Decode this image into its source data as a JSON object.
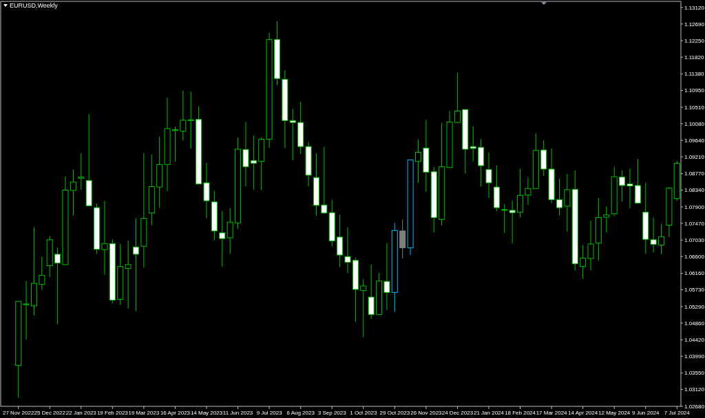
{
  "chart_data": {
    "type": "candlestick",
    "title": "EURUSD,Weekly",
    "categories": [
      "27 Nov 2022",
      null,
      null,
      null,
      "25 Dec 2022",
      null,
      null,
      null,
      "22 Jan 2023",
      null,
      null,
      null,
      "19 Feb 2023",
      null,
      null,
      null,
      "19 Mar 2023",
      null,
      null,
      null,
      "16 Apr 2023",
      null,
      null,
      null,
      "14 May 2023",
      null,
      null,
      null,
      "11 Jun 2023",
      null,
      null,
      null,
      "9 Jul 2023",
      null,
      null,
      null,
      "6 Aug 2023",
      null,
      null,
      null,
      "3 Sep 2023",
      null,
      null,
      null,
      "1 Oct 2023",
      null,
      null,
      null,
      "29 Oct 2023",
      null,
      null,
      null,
      "26 Nov 2023",
      null,
      null,
      null,
      "24 Dec 2023",
      null,
      null,
      null,
      "21 Jan 2024",
      null,
      null,
      null,
      "18 Feb 2024",
      null,
      null,
      null,
      "17 Mar 2024",
      null,
      null,
      null,
      "14 Apr 2024",
      null,
      null,
      null,
      "12 May 2024",
      null,
      null,
      null,
      "9 Jun 2024",
      null,
      null,
      null,
      "7 Jul 2024"
    ],
    "ohlc": [
      [
        1.0375,
        1.0543,
        1.029,
        1.0543
      ],
      [
        1.0534,
        1.0596,
        1.0443,
        1.0536
      ],
      [
        1.0531,
        1.0737,
        1.0506,
        1.059
      ],
      [
        1.0587,
        1.066,
        1.0573,
        1.0611
      ],
      [
        1.0636,
        1.0714,
        1.0606,
        1.0704
      ],
      [
        1.0666,
        1.0683,
        1.0483,
        1.0643
      ],
      [
        1.0639,
        1.087,
        1.0638,
        1.0834
      ],
      [
        1.0833,
        1.0888,
        1.0767,
        1.0855
      ],
      [
        1.0865,
        1.0931,
        1.0835,
        1.0868
      ],
      [
        1.0859,
        1.1033,
        1.0792,
        1.0793
      ],
      [
        1.0788,
        1.0799,
        1.0667,
        1.0679
      ],
      [
        1.0678,
        1.0806,
        1.0613,
        1.0694
      ],
      [
        1.0694,
        1.0706,
        1.0537,
        1.0546
      ],
      [
        1.0548,
        1.0693,
        1.0534,
        1.0634
      ],
      [
        1.0629,
        1.0702,
        1.0524,
        1.0639
      ],
      [
        1.0685,
        1.076,
        1.0517,
        1.0666
      ],
      [
        1.0687,
        1.0931,
        1.0631,
        1.076
      ],
      [
        1.0774,
        1.0927,
        1.0742,
        1.0843
      ],
      [
        1.0842,
        1.0974,
        1.0788,
        1.0901
      ],
      [
        1.0901,
        1.1076,
        1.0831,
        1.0995
      ],
      [
        1.099,
        1.1001,
        1.0909,
        1.0992
      ],
      [
        1.0988,
        1.1095,
        1.0963,
        1.1017
      ],
      [
        1.1016,
        1.1092,
        1.0942,
        1.1018
      ],
      [
        1.1019,
        1.1054,
        1.0849,
        1.085
      ],
      [
        1.0853,
        1.0906,
        1.076,
        1.0806
      ],
      [
        1.0803,
        1.0832,
        1.0702,
        1.0727
      ],
      [
        1.0722,
        1.0779,
        1.0634,
        1.0707
      ],
      [
        1.0709,
        1.0787,
        1.0667,
        1.075
      ],
      [
        1.0748,
        1.0971,
        1.0732,
        1.0941
      ],
      [
        1.094,
        1.1012,
        1.0844,
        1.0895
      ],
      [
        1.0911,
        1.0977,
        1.0835,
        1.0904
      ],
      [
        1.0909,
        1.0973,
        1.0834,
        1.0967
      ],
      [
        1.0967,
        1.1246,
        1.0945,
        1.1228
      ],
      [
        1.1228,
        1.1276,
        1.1108,
        1.1126
      ],
      [
        1.1124,
        1.1148,
        1.0944,
        1.1016
      ],
      [
        1.1016,
        1.1047,
        1.0912,
        1.1011
      ],
      [
        1.1011,
        1.1065,
        1.0929,
        1.0948
      ],
      [
        1.0948,
        1.096,
        1.0844,
        1.0873
      ],
      [
        1.0867,
        1.0931,
        1.0767,
        1.0794
      ],
      [
        1.0795,
        1.0947,
        1.0772,
        1.0774
      ],
      [
        1.0775,
        1.0809,
        1.0687,
        1.0701
      ],
      [
        1.0711,
        1.077,
        1.0632,
        1.0664
      ],
      [
        1.066,
        1.0737,
        1.0616,
        1.0645
      ],
      [
        1.065,
        1.0657,
        1.0489,
        1.0574
      ],
      [
        1.0571,
        1.0601,
        1.0449,
        1.0583
      ],
      [
        1.0554,
        1.0639,
        1.0496,
        1.0508
      ],
      [
        1.0508,
        1.0617,
        1.0508,
        1.0596
      ],
      [
        1.0595,
        1.0695,
        1.052,
        1.0566
      ],
      [
        1.0566,
        1.0748,
        1.0515,
        1.0728
      ],
      [
        1.0727,
        1.0757,
        1.0655,
        1.0683
      ],
      [
        1.0683,
        1.0913,
        1.0664,
        1.0913
      ],
      [
        1.0909,
        1.0967,
        1.0853,
        1.0933
      ],
      [
        1.0944,
        1.1018,
        1.083,
        1.0881
      ],
      [
        1.0882,
        1.0895,
        1.0723,
        1.0762
      ],
      [
        1.0757,
        1.101,
        1.0742,
        1.0895
      ],
      [
        1.0893,
        1.1041,
        1.0893,
        1.1012
      ],
      [
        1.1011,
        1.1141,
        1.1009,
        1.1041
      ],
      [
        1.1045,
        1.1045,
        1.0877,
        1.0941
      ],
      [
        1.0948,
        1.1001,
        1.091,
        1.0943
      ],
      [
        1.0946,
        1.0968,
        1.0844,
        1.0898
      ],
      [
        1.0888,
        1.0933,
        1.0813,
        1.0853
      ],
      [
        1.0842,
        1.0898,
        1.0779,
        1.0788
      ],
      [
        1.0782,
        1.0797,
        1.0722,
        1.0783
      ],
      [
        1.0781,
        1.0807,
        1.0694,
        1.0775
      ],
      [
        1.0776,
        1.0889,
        1.0762,
        1.082
      ],
      [
        1.0821,
        1.0867,
        1.0795,
        1.0838
      ],
      [
        1.0838,
        1.0982,
        1.0838,
        1.0938
      ],
      [
        1.0939,
        1.0964,
        1.0871,
        1.0889
      ],
      [
        1.0889,
        1.0943,
        1.08,
        1.0809
      ],
      [
        1.0809,
        1.0864,
        1.0767,
        1.0788
      ],
      [
        1.0792,
        1.0876,
        1.0725,
        1.0835
      ],
      [
        1.0836,
        1.0886,
        1.0623,
        1.0641
      ],
      [
        1.0634,
        1.069,
        1.0601,
        1.0656
      ],
      [
        1.0655,
        1.0754,
        1.0624,
        1.0693
      ],
      [
        1.0695,
        1.0813,
        1.065,
        1.0762
      ],
      [
        1.0763,
        1.0791,
        1.0723,
        1.0769
      ],
      [
        1.0772,
        1.0895,
        1.0765,
        1.0869
      ],
      [
        1.0868,
        1.0886,
        1.0804,
        1.0846
      ],
      [
        1.085,
        1.089,
        1.0787,
        1.0845
      ],
      [
        1.0846,
        1.0916,
        1.0798,
        1.08
      ],
      [
        1.0776,
        1.0853,
        1.0667,
        1.0705
      ],
      [
        1.0704,
        1.0762,
        1.0671,
        1.0692
      ],
      [
        1.069,
        1.0746,
        1.0666,
        1.0712
      ],
      [
        1.0742,
        1.0842,
        1.0711,
        1.0839
      ],
      [
        1.0812,
        1.0911,
        1.0806,
        1.0904
      ]
    ],
    "colors": [
      "#00c000",
      "#00c000",
      "#00c000",
      "#00c000",
      "#00c000",
      "#ffffff",
      "#00c000",
      "#00c000",
      "#00c000",
      "#ffffff",
      "#ffffff",
      "#00c000",
      "#ffffff",
      "#00c000",
      "#00c000",
      "#ffffff",
      "#00c000",
      "#00c000",
      "#00c000",
      "#00c000",
      "#00c000",
      "#00c000",
      "#00c000",
      "#ffffff",
      "#ffffff",
      "#ffffff",
      "#ffffff",
      "#00c000",
      "#00c000",
      "#ffffff",
      "#ffffff",
      "#00c000",
      "#00c000",
      "#ffffff",
      "#ffffff",
      "#ffffff",
      "#ffffff",
      "#ffffff",
      "#ffffff",
      "#ffffff",
      "#ffffff",
      "#ffffff",
      "#ffffff",
      "#ffffff",
      "#00c000",
      "#ffffff",
      "#00c000",
      "#ffffff",
      "#00bfff",
      "#808080",
      "#00bfff",
      "#00c000",
      "#ffffff",
      "#ffffff",
      "#00c000",
      "#00c000",
      "#00c000",
      "#ffffff",
      "#ffffff",
      "#ffffff",
      "#ffffff",
      "#ffffff",
      "#00c000",
      "#ffffff",
      "#00c000",
      "#00c000",
      "#00c000",
      "#ffffff",
      "#ffffff",
      "#ffffff",
      "#00c000",
      "#ffffff",
      "#00c000",
      "#00c000",
      "#00c000",
      "#00c000",
      "#00c000",
      "#ffffff",
      "#ffffff",
      "#ffffff",
      "#ffffff",
      "#ffffff",
      "#00c000",
      "#00c000",
      "#00c000"
    ],
    "ylim": [
      1.0268,
      1.1328
    ],
    "yticks": [
      {
        "value": 1.0268,
        "label": "1.02680"
      },
      {
        "value": 1.0312,
        "label": "1.03120"
      },
      {
        "value": 1.0355,
        "label": "1.03550"
      },
      {
        "value": 1.0399,
        "label": "1.03990"
      },
      {
        "value": 1.0442,
        "label": "1.04420"
      },
      {
        "value": 1.0486,
        "label": "1.04860"
      },
      {
        "value": 1.0529,
        "label": "1.05290"
      },
      {
        "value": 1.0573,
        "label": "1.05730"
      },
      {
        "value": 1.0616,
        "label": "1.06160"
      },
      {
        "value": 1.066,
        "label": "1.06600"
      },
      {
        "value": 1.0703,
        "label": "1.07030"
      },
      {
        "value": 1.0747,
        "label": "1.07470"
      },
      {
        "value": 1.079,
        "label": "1.07900"
      },
      {
        "value": 1.0834,
        "label": "1.08340"
      },
      {
        "value": 1.0877,
        "label": "1.08770"
      },
      {
        "value": 1.0921,
        "label": "1.09210"
      },
      {
        "value": 1.0964,
        "label": "1.09640"
      },
      {
        "value": 1.1008,
        "label": "1.10080"
      },
      {
        "value": 1.1051,
        "label": "1.10510"
      },
      {
        "value": 1.1095,
        "label": "1.10950"
      },
      {
        "value": 1.1138,
        "label": "1.11380"
      },
      {
        "value": 1.1182,
        "label": "1.11820"
      },
      {
        "value": 1.1225,
        "label": "1.12250"
      },
      {
        "value": 1.1269,
        "label": "1.12690"
      },
      {
        "value": 1.1312,
        "label": "1.13120"
      }
    ],
    "grid": false
  }
}
